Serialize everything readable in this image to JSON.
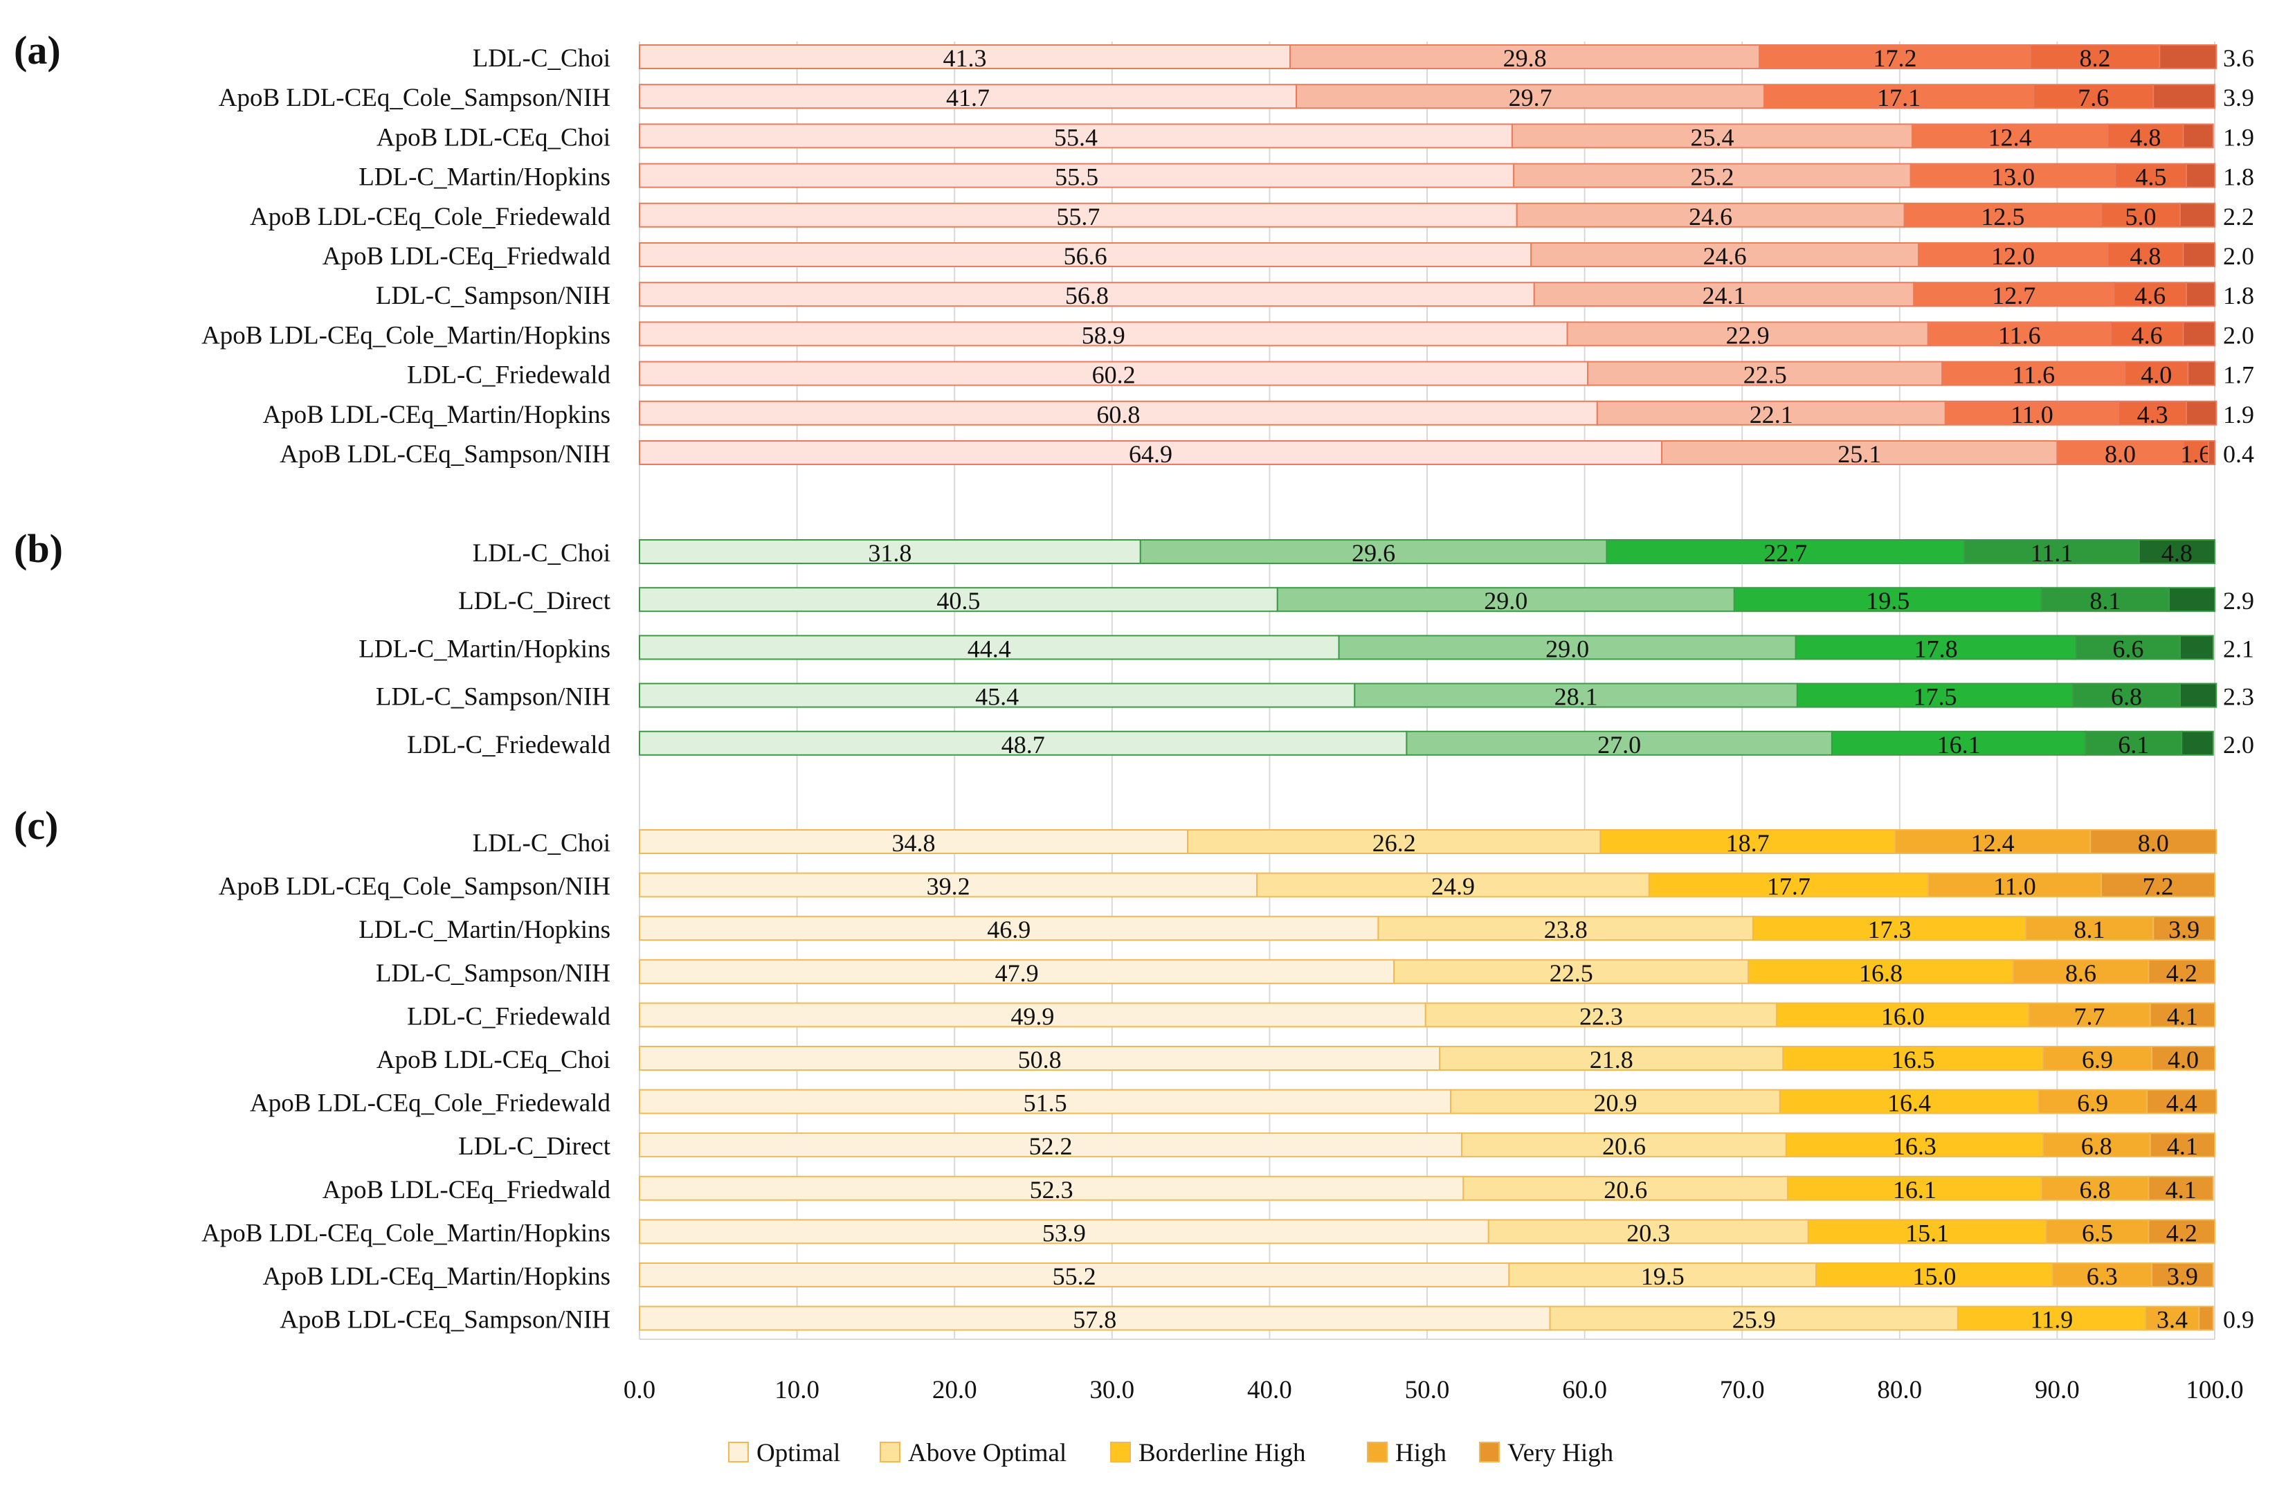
{
  "chart_data": [
    {
      "type": "bar",
      "orientation": "horizontal",
      "stacked": true,
      "panel_label": "(a)",
      "categories": [
        "LDL-C_Choi",
        "ApoB LDL-CEq_Cole_Sampson/NIH",
        "ApoB LDL-CEq_Choi",
        "LDL-C_Martin/Hopkins",
        "ApoB LDL-CEq_Cole_Friedewald",
        "ApoB LDL-CEq_Friedwald",
        "LDL-C_Sampson/NIH",
        "ApoB LDL-CEq_Cole_Martin/Hopkins",
        "LDL-C_Friedewald",
        "ApoB LDL-CEq_Martin/Hopkins",
        "ApoB LDL-CEq_Sampson/NIH"
      ],
      "series": [
        {
          "name": "Optimal",
          "values": [
            41.3,
            41.7,
            55.4,
            55.5,
            55.7,
            56.6,
            56.8,
            58.9,
            60.2,
            60.8,
            64.9
          ]
        },
        {
          "name": "Above Optimal",
          "values": [
            29.8,
            29.7,
            25.4,
            25.2,
            24.6,
            24.6,
            24.1,
            22.9,
            22.5,
            22.1,
            25.1
          ]
        },
        {
          "name": "Borderline High",
          "values": [
            17.2,
            17.1,
            12.4,
            13.0,
            12.5,
            12.0,
            12.7,
            11.6,
            11.6,
            11.0,
            8.0
          ]
        },
        {
          "name": "High",
          "values": [
            8.2,
            7.6,
            4.8,
            4.5,
            5.0,
            4.8,
            4.6,
            4.6,
            4.0,
            4.3,
            1.6
          ]
        },
        {
          "name": "Very High",
          "values": [
            3.6,
            3.9,
            1.9,
            1.8,
            2.2,
            2.0,
            1.8,
            2.0,
            1.7,
            1.9,
            0.4
          ]
        }
      ],
      "colors": [
        "#fde3dc",
        "#f7b9a1",
        "#f3784b",
        "#ec6a3c",
        "#d45a36"
      ],
      "stroke": "#ea7b5c",
      "outside_label_series": 4,
      "xlim": [
        0,
        100
      ],
      "grid": true
    },
    {
      "type": "bar",
      "orientation": "horizontal",
      "stacked": true,
      "panel_label": "(b)",
      "categories": [
        "LDL-C_Choi",
        "LDL-C_Direct",
        "LDL-C_Martin/Hopkins",
        "LDL-C_Sampson/NIH",
        "LDL-C_Friedewald"
      ],
      "series": [
        {
          "name": "Optimal",
          "values": [
            31.8,
            40.5,
            44.4,
            45.4,
            48.7
          ]
        },
        {
          "name": "Above Optimal",
          "values": [
            29.6,
            29.0,
            29.0,
            28.1,
            27.0
          ]
        },
        {
          "name": "Borderline High",
          "values": [
            22.7,
            19.5,
            17.8,
            17.5,
            16.1
          ]
        },
        {
          "name": "High",
          "values": [
            11.1,
            8.1,
            6.6,
            6.8,
            6.1
          ]
        },
        {
          "name": "Very High",
          "values": [
            4.8,
            2.9,
            2.1,
            2.3,
            2.0
          ]
        }
      ],
      "colors": [
        "#dff0dd",
        "#94cf95",
        "#25b539",
        "#2f9a3b",
        "#1e6a29"
      ],
      "stroke": "#3d9b48",
      "outside_label_series": 4,
      "inside_label_rows": [
        0
      ],
      "xlim": [
        0,
        100
      ],
      "grid": true
    },
    {
      "type": "bar",
      "orientation": "horizontal",
      "stacked": true,
      "panel_label": "(c)",
      "categories": [
        "LDL-C_Choi",
        "ApoB LDL-CEq_Cole_Sampson/NIH",
        "LDL-C_Martin/Hopkins",
        "LDL-C_Sampson/NIH",
        "LDL-C_Friedewald",
        "ApoB LDL-CEq_Choi",
        "ApoB LDL-CEq_Cole_Friedewald",
        "LDL-C_Direct",
        "ApoB LDL-CEq_Friedwald",
        "ApoB LDL-CEq_Cole_Martin/Hopkins",
        "ApoB LDL-CEq_Martin/Hopkins",
        "ApoB LDL-CEq_Sampson/NIH"
      ],
      "series": [
        {
          "name": "Optimal",
          "values": [
            34.8,
            39.2,
            46.9,
            47.9,
            49.9,
            50.8,
            51.5,
            52.2,
            52.3,
            53.9,
            55.2,
            57.8
          ]
        },
        {
          "name": "Above Optimal",
          "values": [
            26.2,
            24.9,
            23.8,
            22.5,
            22.3,
            21.8,
            20.9,
            20.6,
            20.6,
            20.3,
            19.5,
            25.9
          ]
        },
        {
          "name": "Borderline High",
          "values": [
            18.7,
            17.7,
            17.3,
            16.8,
            16.0,
            16.5,
            16.4,
            16.3,
            16.1,
            15.1,
            15.0,
            11.9
          ]
        },
        {
          "name": "High",
          "values": [
            12.4,
            11.0,
            8.1,
            8.6,
            7.7,
            6.9,
            6.9,
            6.8,
            6.8,
            6.5,
            6.3,
            3.4
          ]
        },
        {
          "name": "Very High",
          "values": [
            8.0,
            7.2,
            3.9,
            4.2,
            4.1,
            4.0,
            4.4,
            4.1,
            4.1,
            4.2,
            3.9,
            0.9
          ]
        }
      ],
      "colors": [
        "#fdf1dc",
        "#fde29c",
        "#ffc41d",
        "#f5ac2c",
        "#e7962e"
      ],
      "stroke": "#f0b955",
      "outside_label_series": 4,
      "inside_label_rows": [
        0,
        1,
        2,
        3,
        4,
        5,
        6,
        7,
        8,
        9,
        10
      ],
      "xlim": [
        0,
        100
      ],
      "xticks": [
        "0.0",
        "10.0",
        "20.0",
        "30.0",
        "40.0",
        "50.0",
        "60.0",
        "70.0",
        "80.0",
        "90.0",
        "100.0"
      ],
      "grid": true
    }
  ],
  "legend": {
    "placement": "bottom-center",
    "items": [
      {
        "label": "Optimal",
        "color": "#fdf1dc"
      },
      {
        "label": "Above Optimal",
        "color": "#fde29c"
      },
      {
        "label": "Borderline High",
        "color": "#ffc41d"
      },
      {
        "label": "High",
        "color": "#f5ac2c"
      },
      {
        "label": "Very High",
        "color": "#e7962e"
      }
    ]
  }
}
